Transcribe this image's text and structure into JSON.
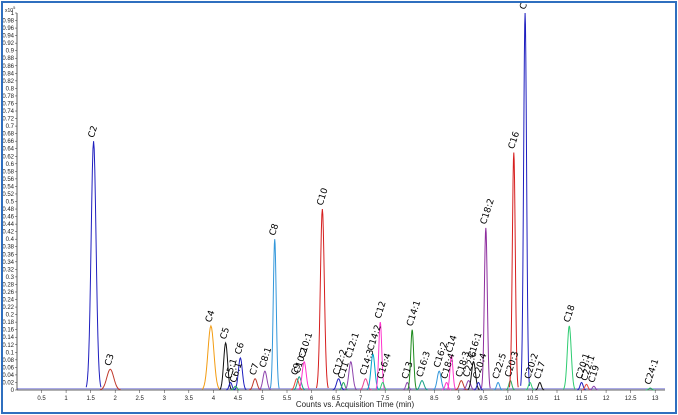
{
  "chart_data": {
    "type": "line",
    "title": "",
    "xlabel": "Counts vs. Acquisition Time (min)",
    "ylabel": "",
    "y_scale_label": "x10",
    "y_scale_exp": "5",
    "xlim": [
      0,
      13.2
    ],
    "ylim": [
      0,
      1.0
    ],
    "x_ticks": [
      0.5,
      1,
      1.5,
      2,
      2.5,
      3,
      3.5,
      4,
      4.5,
      5,
      5.5,
      6,
      6.5,
      7,
      7.5,
      8,
      8.5,
      9,
      9.5,
      10,
      10.5,
      11,
      11.5,
      12,
      12.5,
      13
    ],
    "y_ticks": [
      0,
      0.02,
      0.04,
      0.06,
      0.08,
      0.1,
      0.12,
      0.14,
      0.16,
      0.18,
      0.2,
      0.22,
      0.24,
      0.26,
      0.28,
      0.3,
      0.32,
      0.34,
      0.36,
      0.38,
      0.4,
      0.42,
      0.44,
      0.46,
      0.48,
      0.5,
      0.52,
      0.54,
      0.56,
      0.58,
      0.6,
      0.62,
      0.64,
      0.66,
      0.68,
      0.7,
      0.72,
      0.74,
      0.76,
      0.78,
      0.8,
      0.82,
      0.84,
      0.86,
      0.88,
      0.9,
      0.92,
      0.94,
      0.96,
      0.98,
      1
    ],
    "grid": false,
    "peaks": [
      {
        "label": "C2",
        "x": 1.56,
        "y": 0.66,
        "color": "#1f1fbf",
        "width": 0.05
      },
      {
        "label": "C3",
        "x": 1.9,
        "y": 0.055,
        "color": "#c0392b",
        "width": 0.07
      },
      {
        "label": "C4",
        "x": 3.95,
        "y": 0.17,
        "color": "#f39c12",
        "width": 0.06
      },
      {
        "label": "C5",
        "x": 4.25,
        "y": 0.125,
        "color": "#111111",
        "width": 0.04
      },
      {
        "label": "C5:1",
        "x": 4.35,
        "y": 0.02,
        "color": "#1f1fbf",
        "width": 0.03
      },
      {
        "label": "C6",
        "x": 4.55,
        "y": 0.085,
        "color": "#1f1fbf",
        "width": 0.04
      },
      {
        "label": "C6:1",
        "x": 4.45,
        "y": 0.01,
        "color": "#27ae60",
        "width": 0.03
      },
      {
        "label": "C7",
        "x": 4.85,
        "y": 0.03,
        "color": "#c0392b",
        "width": 0.04
      },
      {
        "label": "C8:1",
        "x": 5.05,
        "y": 0.05,
        "color": "#8e44ad",
        "width": 0.04
      },
      {
        "label": "C8",
        "x": 5.25,
        "y": 0.4,
        "color": "#3498db",
        "width": 0.03
      },
      {
        "label": "C9",
        "x": 5.7,
        "y": 0.03,
        "color": "#e74c3c",
        "width": 0.04
      },
      {
        "label": "C10:2",
        "x": 5.75,
        "y": 0.035,
        "color": "#16a085",
        "width": 0.04
      },
      {
        "label": "C10:1",
        "x": 5.85,
        "y": 0.075,
        "color": "#ff33cc",
        "width": 0.04
      },
      {
        "label": "C10",
        "x": 6.22,
        "y": 0.48,
        "color": "#d61f1f",
        "width": 0.04
      },
      {
        "label": "C12:2",
        "x": 6.55,
        "y": 0.03,
        "color": "#1f1fbf",
        "width": 0.04
      },
      {
        "label": "C11",
        "x": 6.65,
        "y": 0.02,
        "color": "#27ae60",
        "width": 0.03
      },
      {
        "label": "C12:1",
        "x": 6.8,
        "y": 0.075,
        "color": "#8e44ad",
        "width": 0.04
      },
      {
        "label": "C14:3",
        "x": 7.1,
        "y": 0.03,
        "color": "#e84393",
        "width": 0.04
      },
      {
        "label": "C14:2",
        "x": 7.25,
        "y": 0.095,
        "color": "#00a3cc",
        "width": 0.04
      },
      {
        "label": "C12",
        "x": 7.4,
        "y": 0.18,
        "color": "#ff33cc",
        "width": 0.03
      },
      {
        "label": "C16:4",
        "x": 7.45,
        "y": 0.02,
        "color": "#2ecc71",
        "width": 0.03
      },
      {
        "label": "C13",
        "x": 7.95,
        "y": 0.02,
        "color": "#8e44ad",
        "width": 0.03
      },
      {
        "label": "C14:1",
        "x": 8.05,
        "y": 0.16,
        "color": "#1e8b1e",
        "width": 0.03
      },
      {
        "label": "C16:3",
        "x": 8.25,
        "y": 0.025,
        "color": "#16a085",
        "width": 0.04
      },
      {
        "label": "C16:2",
        "x": 8.6,
        "y": 0.05,
        "color": "#3498db",
        "width": 0.04
      },
      {
        "label": "C18:4",
        "x": 8.75,
        "y": 0.02,
        "color": "#ff33cc",
        "width": 0.03
      },
      {
        "label": "C14",
        "x": 8.85,
        "y": 0.09,
        "color": "#ff33cc",
        "width": 0.03
      },
      {
        "label": "C18:3",
        "x": 9.05,
        "y": 0.025,
        "color": "#c0392b",
        "width": 0.04
      },
      {
        "label": "C22:6",
        "x": 9.2,
        "y": 0.025,
        "color": "#8e44ad",
        "width": 0.04
      },
      {
        "label": "C16:1",
        "x": 9.3,
        "y": 0.075,
        "color": "#111111",
        "width": 0.04
      },
      {
        "label": "C20:4",
        "x": 9.4,
        "y": 0.02,
        "color": "#1f1fbf",
        "width": 0.03
      },
      {
        "label": "C18:2",
        "x": 9.55,
        "y": 0.43,
        "color": "#8e2e9e",
        "width": 0.03
      },
      {
        "label": "C22:5",
        "x": 9.8,
        "y": 0.02,
        "color": "#3498db",
        "width": 0.03
      },
      {
        "label": "C20:3",
        "x": 10.05,
        "y": 0.025,
        "color": "#27ae60",
        "width": 0.03
      },
      {
        "label": "C16",
        "x": 10.12,
        "y": 0.63,
        "color": "#d61f1f",
        "width": 0.03
      },
      {
        "label": "C18:1",
        "x": 10.35,
        "y": 1.0,
        "color": "#1f1fbf",
        "width": 0.03
      },
      {
        "label": "C20:2",
        "x": 10.45,
        "y": 0.02,
        "color": "#2ecc71",
        "width": 0.03
      },
      {
        "label": "C17",
        "x": 10.65,
        "y": 0.02,
        "color": "#111111",
        "width": 0.03
      },
      {
        "label": "C18",
        "x": 11.25,
        "y": 0.17,
        "color": "#2ecc71",
        "width": 0.04
      },
      {
        "label": "C20:1",
        "x": 11.5,
        "y": 0.02,
        "color": "#1f1fbf",
        "width": 0.03
      },
      {
        "label": "C22:1",
        "x": 11.6,
        "y": 0.015,
        "color": "#e74c3c",
        "width": 0.03
      },
      {
        "label": "C19",
        "x": 11.75,
        "y": 0.01,
        "color": "#8e44ad",
        "width": 0.03
      },
      {
        "label": "C24:1",
        "x": 12.9,
        "y": 0.005,
        "color": "#27ae60",
        "width": 0.03
      }
    ]
  }
}
